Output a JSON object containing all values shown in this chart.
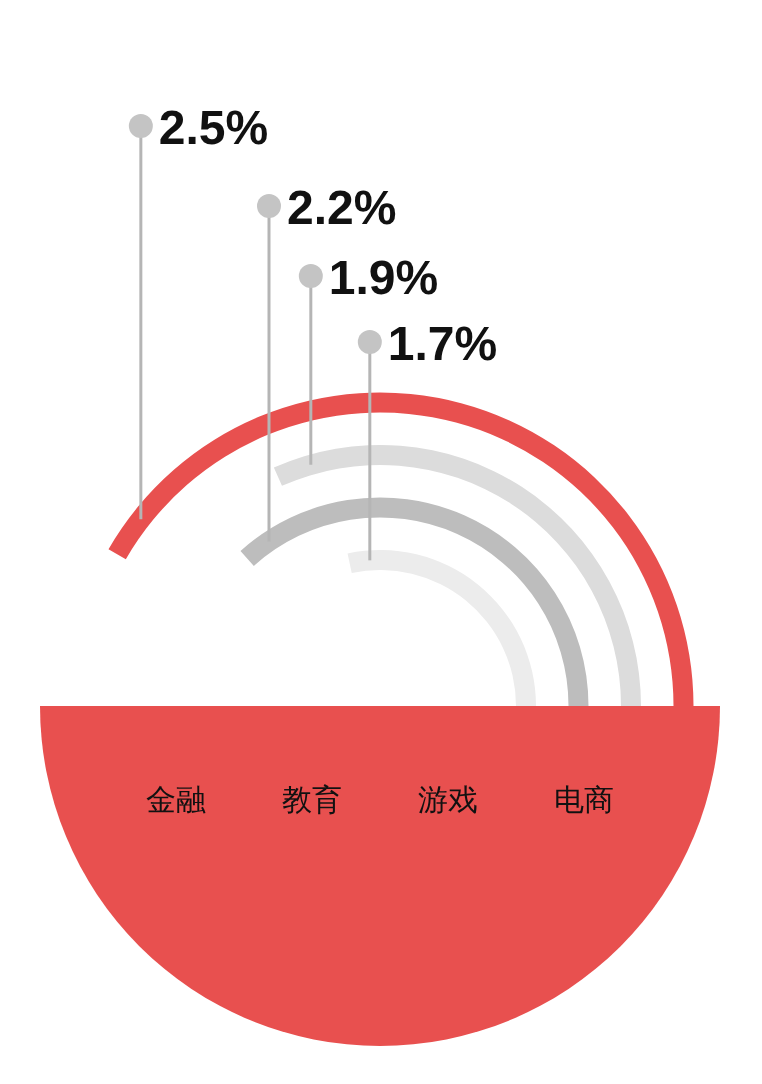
{
  "chart_data": {
    "type": "other",
    "categories": [
      "金融",
      "教育",
      "游戏",
      "电商"
    ],
    "values": [
      2.5,
      1.9,
      2.2,
      1.7
    ],
    "value_labels": [
      "2.5%",
      "1.9%",
      "2.2%",
      "1.7%"
    ],
    "colors": [
      "#e8504f",
      "#dcdcdc",
      "#bdbdbd",
      "#ececec"
    ]
  }
}
